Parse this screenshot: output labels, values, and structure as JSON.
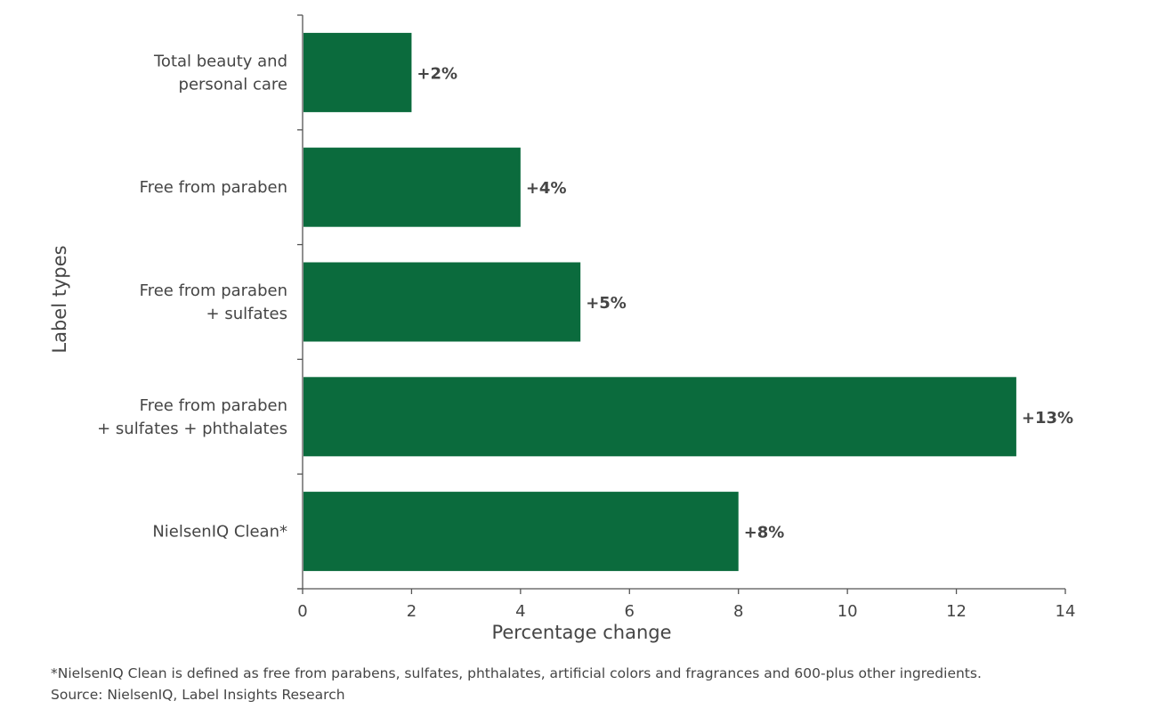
{
  "chart_data": {
    "type": "bar",
    "orientation": "horizontal",
    "categories": [
      [
        "Total beauty and",
        "personal care"
      ],
      [
        "Free from paraben"
      ],
      [
        "Free from paraben",
        "+ sulfates"
      ],
      [
        "Free from paraben",
        "+ sulfates + phthalates"
      ],
      [
        "NielsenIQ Clean*"
      ]
    ],
    "values": [
      2,
      4,
      5.1,
      13.1,
      8
    ],
    "data_labels": [
      "+2%",
      "+4%",
      "+5%",
      "+13%",
      "+8%"
    ],
    "xlabel": "Percentage change",
    "ylabel": "Label types",
    "xlim": [
      0,
      14
    ],
    "xticks": [
      "0",
      "2",
      "4",
      "6",
      "8",
      "10",
      "12",
      "14"
    ],
    "grid": false,
    "bar_color": "#0b6b3d"
  },
  "footnote": "*NielsenIQ Clean is defined as free from parabens, sulfates, phthalates, artificial colors and fragrances and 600-plus other ingredients.",
  "source": "Source:   NielsenIQ, Label Insights Research"
}
